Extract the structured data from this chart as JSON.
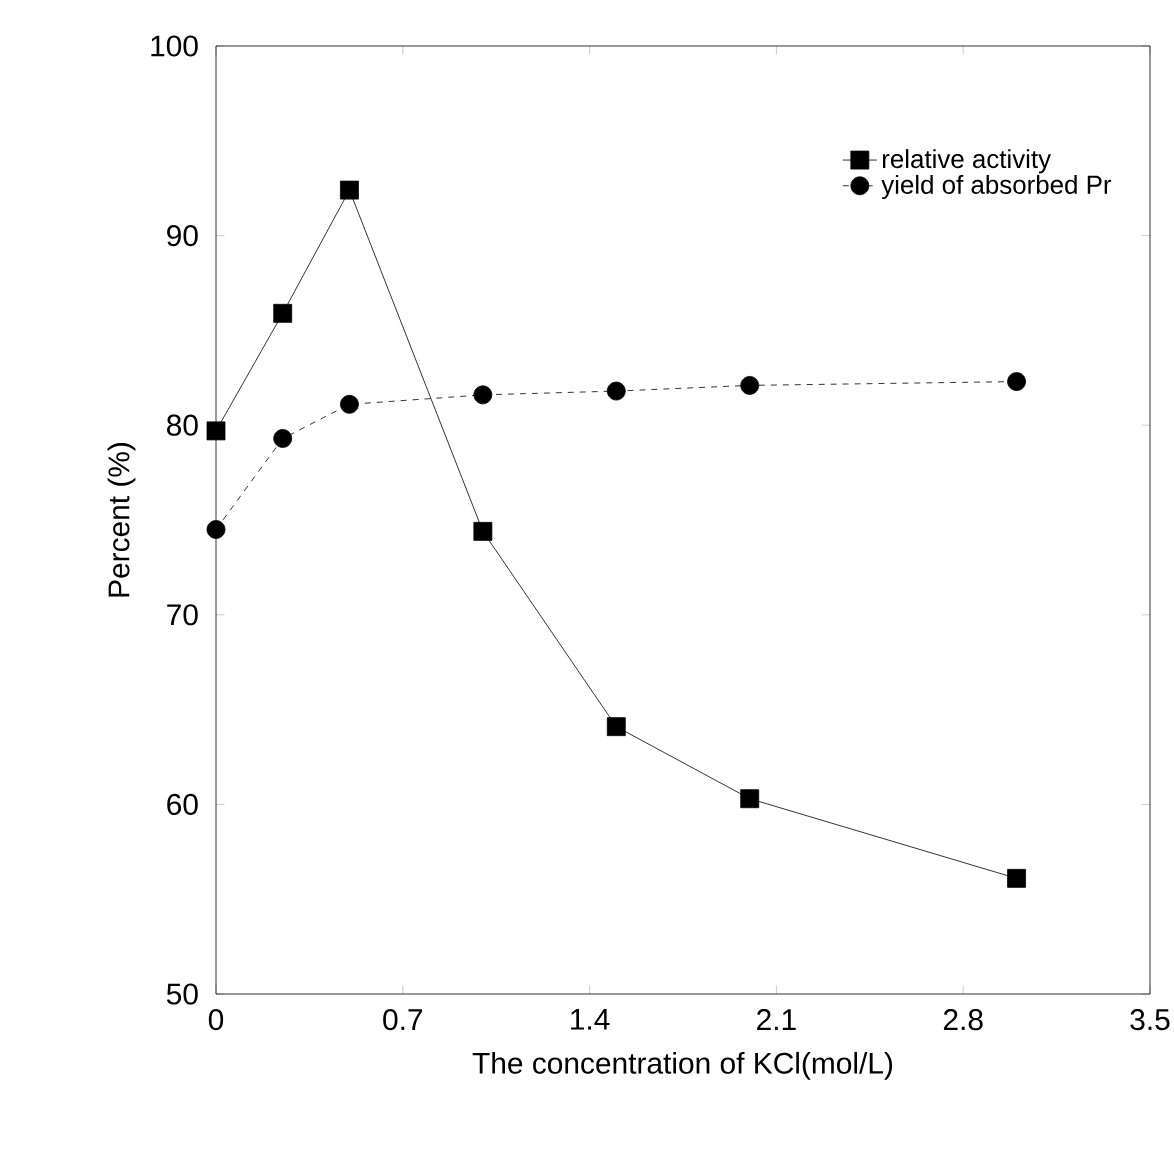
{
  "chart_data": {
    "type": "line",
    "xlabel": "The concentration of KCl(mol/L)",
    "ylabel": "Percent (%)",
    "xlim": [
      0,
      3.5
    ],
    "xticks": [
      0,
      0.7,
      1.4,
      2.1,
      2.8,
      3.5
    ],
    "ylim": [
      50,
      100
    ],
    "yticks": [
      50,
      60,
      70,
      80,
      90,
      100
    ],
    "grid": false,
    "legend": "top right",
    "series": [
      {
        "name": "relative activity",
        "color": "#000000",
        "marker": "square",
        "line_style": "solid",
        "x": [
          0,
          0.25,
          0.5,
          1.0,
          1.5,
          2.0,
          3.0
        ],
        "values": [
          79.7,
          85.9,
          92.4,
          74.4,
          64.1,
          60.3,
          56.1
        ]
      },
      {
        "name": "yield of absorbed Pr",
        "color": "#000000",
        "marker": "circle",
        "line_style": "dashed",
        "x": [
          0,
          0.25,
          0.5,
          1.0,
          1.5,
          2.0,
          3.0
        ],
        "values": [
          74.5,
          79.3,
          81.1,
          81.6,
          81.8,
          82.1,
          82.3
        ]
      }
    ]
  }
}
